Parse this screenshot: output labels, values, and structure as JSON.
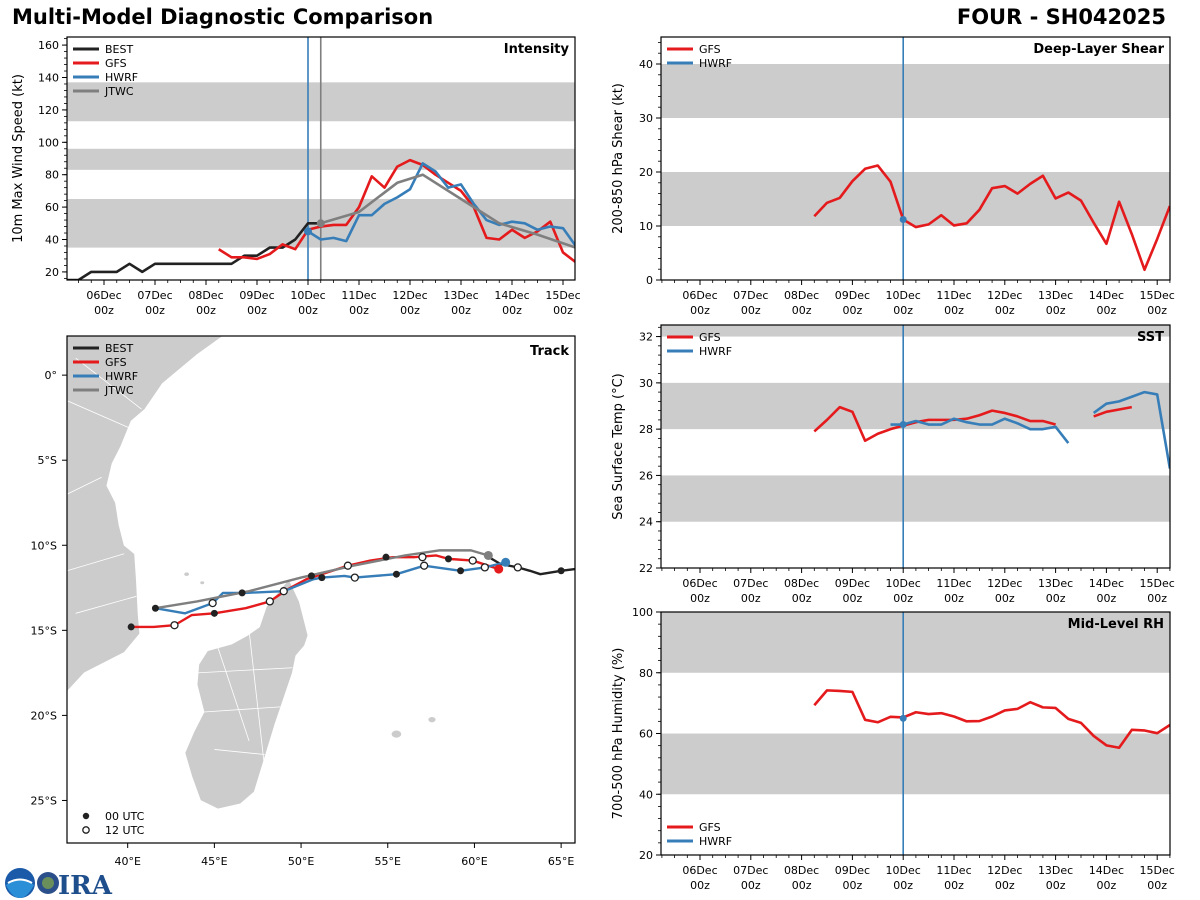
{
  "header": {
    "title": "Multi-Model Diagnostic Comparison",
    "storm": "FOUR - SH042025"
  },
  "logos": [
    "NOAA",
    "CIRA"
  ],
  "colors": {
    "BEST": "#222222",
    "GFS": "#e41a1c",
    "HWRF": "#377eb8",
    "JTWC": "#7f7f7f",
    "band": "#cccccc",
    "land": "#cccccc"
  },
  "time_ticks": [
    {
      "top": "06Dec",
      "bottom": "00z",
      "day": 0
    },
    {
      "top": "07Dec",
      "bottom": "00z",
      "day": 1
    },
    {
      "top": "08Dec",
      "bottom": "00z",
      "day": 2
    },
    {
      "top": "09Dec",
      "bottom": "00z",
      "day": 3
    },
    {
      "top": "10Dec",
      "bottom": "00z",
      "day": 4
    },
    {
      "top": "11Dec",
      "bottom": "00z",
      "day": 5
    },
    {
      "top": "12Dec",
      "bottom": "00z",
      "day": 6
    },
    {
      "top": "13Dec",
      "bottom": "00z",
      "day": 7
    },
    {
      "top": "14Dec",
      "bottom": "00z",
      "day": 8
    },
    {
      "top": "15Dec",
      "bottom": "00z",
      "day": 9
    }
  ],
  "chart_data": [
    {
      "id": "intensity",
      "type": "line",
      "title": "Intensity",
      "ylabel": "10m Max Wind Speed (kt)",
      "xlabel": "",
      "xlim_days": [
        -0.73,
        9.24
      ],
      "ylim": [
        15,
        165
      ],
      "yticks": [
        20,
        40,
        60,
        80,
        100,
        120,
        140,
        160
      ],
      "bands": [
        [
          35,
          65
        ],
        [
          83,
          96
        ],
        [
          113,
          137
        ]
      ],
      "vlines": [
        {
          "day": 4.0,
          "color": "HWRF"
        },
        {
          "day": 4.25,
          "color": "JTWC"
        }
      ],
      "legend": [
        "BEST",
        "GFS",
        "HWRF",
        "JTWC"
      ],
      "legend_position": "top-left",
      "series": [
        {
          "name": "BEST",
          "x_days": [
            -0.75,
            -0.5,
            -0.25,
            0,
            0.25,
            0.5,
            0.75,
            1,
            1.25,
            1.5,
            1.75,
            2,
            2.25,
            2.5,
            2.75,
            3,
            3.25,
            3.5,
            3.75,
            4,
            4.25
          ],
          "values": [
            15,
            15,
            20,
            20,
            20,
            25,
            20,
            25,
            25,
            25,
            25,
            25,
            25,
            25,
            30,
            30,
            35,
            35,
            40,
            50,
            50
          ]
        },
        {
          "name": "GFS",
          "x_days": [
            2.25,
            2.5,
            2.75,
            3,
            3.25,
            3.5,
            3.75,
            4,
            4.25,
            4.5,
            4.75,
            5,
            5.25,
            5.5,
            5.75,
            6,
            6.25,
            6.5,
            6.75,
            7,
            7.25,
            7.5,
            7.75,
            8,
            8.25,
            8.5,
            8.75,
            9,
            9.25
          ],
          "values": [
            34,
            29,
            29,
            28,
            31,
            37,
            34,
            46,
            48,
            49,
            49,
            60,
            79,
            72,
            85,
            89,
            86,
            80,
            75,
            70,
            60,
            41,
            40,
            46,
            41,
            45,
            51,
            32,
            26
          ]
        },
        {
          "name": "HWRF",
          "x_days": [
            4,
            4.25,
            4.5,
            4.75,
            5,
            5.25,
            5.5,
            5.75,
            6,
            6.25,
            6.5,
            6.75,
            7,
            7.25,
            7.5,
            7.75,
            8,
            8.25,
            8.5,
            8.75,
            9,
            9.25
          ],
          "values": [
            45,
            40,
            41,
            39,
            55,
            55,
            62,
            66,
            71,
            87,
            82,
            72,
            74,
            62,
            52,
            49,
            51,
            50,
            46,
            48,
            47,
            36
          ]
        },
        {
          "name": "JTWC",
          "x_days": [
            4.25,
            5,
            5.75,
            6.25,
            7,
            7.75,
            8.5,
            9.25
          ],
          "values": [
            50,
            57,
            75,
            80,
            65,
            50,
            43,
            35
          ]
        }
      ]
    },
    {
      "id": "shear",
      "type": "line",
      "title": "Deep-Layer Shear",
      "ylabel": "200-850 hPa Shear (kt)",
      "xlabel": "",
      "xlim_days": [
        -0.75,
        9.25
      ],
      "ylim": [
        0,
        45
      ],
      "yticks": [
        0,
        10,
        20,
        30,
        40
      ],
      "bands": [
        [
          10,
          20
        ],
        [
          30,
          40
        ]
      ],
      "vlines": [
        {
          "day": 4.0,
          "color": "HWRF"
        }
      ],
      "legend": [
        "GFS",
        "HWRF"
      ],
      "legend_position": "top-left",
      "series": [
        {
          "name": "GFS",
          "x_days": [
            2.25,
            2.5,
            2.75,
            3,
            3.25,
            3.5,
            3.75,
            4,
            4.25,
            4.5,
            4.75,
            5,
            5.25,
            5.5,
            5.75,
            6,
            6.25,
            6.5,
            6.75,
            7,
            7.25,
            7.5,
            7.75,
            8,
            8.25,
            8.5,
            8.75,
            9,
            9.25
          ],
          "values": [
            11.8,
            14.3,
            15.2,
            18.3,
            20.6,
            21.2,
            18.2,
            11.2,
            9.8,
            10.3,
            12,
            10.1,
            10.5,
            13,
            17,
            17.4,
            16,
            17.8,
            19.3,
            15.1,
            16.2,
            14.7,
            10.6,
            6.7,
            14.5,
            8.5,
            1.9,
            7.6,
            13.7
          ]
        },
        {
          "name": "HWRF",
          "x_days": [
            4.0
          ],
          "values": [
            11.2
          ]
        }
      ]
    },
    {
      "id": "sst",
      "type": "line",
      "title": "SST",
      "ylabel": "Sea Surface Temp (°C)",
      "xlabel": "",
      "xlim_days": [
        -0.75,
        9.25
      ],
      "ylim": [
        22,
        32.5
      ],
      "yticks": [
        22,
        24,
        26,
        28,
        30,
        32
      ],
      "bands": [
        [
          24,
          26
        ],
        [
          28,
          30
        ],
        [
          32,
          32.5
        ]
      ],
      "vlines": [
        {
          "day": 4.0,
          "color": "HWRF"
        }
      ],
      "legend": [
        "GFS",
        "HWRF"
      ],
      "legend_position": "top-left",
      "series": [
        {
          "name": "GFS",
          "x_days": [
            2.25,
            2.5,
            2.75,
            3,
            3.25,
            3.5,
            3.75,
            4,
            4.25,
            4.5,
            4.75,
            5,
            5.25,
            5.5,
            5.75,
            6,
            6.25,
            6.5,
            6.75,
            7
          ],
          "values": [
            27.9,
            28.4,
            28.95,
            28.75,
            27.5,
            27.8,
            28.0,
            28.15,
            28.3,
            28.4,
            28.4,
            28.4,
            28.45,
            28.6,
            28.8,
            28.7,
            28.55,
            28.35,
            28.35,
            28.2
          ]
        },
        {
          "name": "GFS-late",
          "x_days": [
            7.75,
            8,
            8.25,
            8.5
          ],
          "values": [
            28.55,
            28.75,
            28.85,
            28.95
          ]
        },
        {
          "name": "HWRF",
          "x_days": [
            3.75,
            4,
            4.25,
            4.5,
            4.75,
            5,
            5.25,
            5.5,
            5.75,
            6,
            6.25,
            6.5,
            6.75,
            7,
            7.25
          ],
          "values": [
            28.2,
            28.2,
            28.35,
            28.2,
            28.2,
            28.45,
            28.3,
            28.2,
            28.2,
            28.45,
            28.25,
            28.0,
            28.0,
            28.1,
            27.4
          ]
        },
        {
          "name": "HWRF-late",
          "x_days": [
            7.75,
            8,
            8.25,
            8.5,
            8.75,
            9,
            9.25
          ],
          "values": [
            28.7,
            29.1,
            29.2,
            29.4,
            29.6,
            29.5,
            26.3
          ]
        }
      ]
    },
    {
      "id": "rh",
      "type": "line",
      "title": "Mid-Level RH",
      "ylabel": "700-500 hPa Humidity (%)",
      "xlabel": "",
      "xlim_days": [
        -0.75,
        9.25
      ],
      "ylim": [
        20,
        100
      ],
      "yticks": [
        20,
        40,
        60,
        80,
        100
      ],
      "bands": [
        [
          40,
          60
        ],
        [
          80,
          100
        ]
      ],
      "vlines": [
        {
          "day": 4.0,
          "color": "HWRF"
        }
      ],
      "legend": [
        "GFS",
        "HWRF"
      ],
      "legend_position": "bottom-left",
      "series": [
        {
          "name": "GFS",
          "x_days": [
            2.25,
            2.5,
            2.75,
            3,
            3.25,
            3.5,
            3.75,
            4,
            4.25,
            4.5,
            4.75,
            5,
            5.25,
            5.5,
            5.75,
            6,
            6.25,
            6.5,
            6.75,
            7,
            7.25,
            7.5,
            7.75,
            8,
            8.25,
            8.5,
            8.75,
            9,
            9.25
          ],
          "values": [
            69.3,
            74.2,
            74,
            73.7,
            64.5,
            63.7,
            65.5,
            65.3,
            67,
            66.4,
            66.7,
            65.6,
            64,
            64.1,
            65.6,
            67.6,
            68.1,
            70.3,
            68.6,
            68.4,
            64.8,
            63.5,
            59.2,
            56.1,
            55.3,
            61.2,
            61,
            60.1,
            62.8
          ]
        },
        {
          "name": "HWRF",
          "x_days": [
            4.0
          ],
          "values": [
            65
          ]
        }
      ]
    },
    {
      "id": "track",
      "type": "scatter",
      "title": "Track",
      "xlim": [
        36.5,
        65.8
      ],
      "ylim": [
        -27.5,
        2.3
      ],
      "xticks": [
        {
          "v": 40,
          "label": "40°E"
        },
        {
          "v": 45,
          "label": "45°E"
        },
        {
          "v": 50,
          "label": "50°E"
        },
        {
          "v": 55,
          "label": "55°E"
        },
        {
          "v": 60,
          "label": "60°E"
        },
        {
          "v": 65,
          "label": "65°E"
        }
      ],
      "yticks": [
        {
          "v": 0,
          "label": "0°"
        },
        {
          "v": -5,
          "label": "5°S"
        },
        {
          "v": -10,
          "label": "10°S"
        },
        {
          "v": -15,
          "label": "15°S"
        },
        {
          "v": -20,
          "label": "20°S"
        },
        {
          "v": -25,
          "label": "25°S"
        }
      ],
      "legend": [
        "BEST",
        "GFS",
        "HWRF",
        "JTWC"
      ],
      "marker_legend": [
        "00 UTC",
        "12 UTC"
      ],
      "series": [
        {
          "name": "BEST",
          "points": [
            [
              65.8,
              -11.4
            ],
            [
              65.0,
              -11.5
            ],
            [
              63.8,
              -11.7
            ],
            [
              63.2,
              -11.5
            ],
            [
              62.5,
              -11.3
            ],
            [
              61.5,
              -11.1
            ],
            [
              61.0,
              -10.8
            ],
            [
              60.8,
              -10.6
            ]
          ],
          "markers": [
            [
              65.0,
              -11.5,
              "00"
            ],
            [
              62.5,
              -11.3,
              "12"
            ]
          ]
        },
        {
          "name": "GFS",
          "points": [
            [
              40.2,
              -14.8
            ],
            [
              41.5,
              -14.8
            ],
            [
              42.7,
              -14.7
            ],
            [
              43.7,
              -14.1
            ],
            [
              45.0,
              -14.0
            ],
            [
              46.8,
              -13.7
            ],
            [
              48.2,
              -13.3
            ],
            [
              49.2,
              -12.6
            ],
            [
              50.3,
              -12.0
            ],
            [
              51.5,
              -11.6
            ],
            [
              52.7,
              -11.2
            ],
            [
              54.0,
              -10.9
            ],
            [
              55.3,
              -10.7
            ],
            [
              56.5,
              -10.7
            ],
            [
              57.8,
              -10.6
            ],
            [
              58.5,
              -10.8
            ],
            [
              59.9,
              -10.9
            ],
            [
              61.4,
              -11.4
            ]
          ],
          "markers": [
            [
              40.2,
              -14.8,
              "00"
            ],
            [
              42.7,
              -14.7,
              "12"
            ],
            [
              45.0,
              -14.0,
              "00"
            ],
            [
              48.2,
              -13.3,
              "12"
            ],
            [
              52.7,
              -11.2,
              "12"
            ],
            [
              58.5,
              -10.8,
              "00"
            ],
            [
              59.9,
              -10.9,
              "12"
            ],
            [
              61.4,
              -11.4,
              "now"
            ]
          ]
        },
        {
          "name": "HWRF",
          "points": [
            [
              41.6,
              -13.7
            ],
            [
              43.3,
              -14.0
            ],
            [
              44.9,
              -13.4
            ],
            [
              45.5,
              -12.8
            ],
            [
              46.8,
              -12.8
            ],
            [
              49.0,
              -12.7
            ],
            [
              50.7,
              -12.0
            ],
            [
              51.2,
              -11.9
            ],
            [
              52.5,
              -11.8
            ],
            [
              53.1,
              -11.9
            ],
            [
              55.5,
              -11.7
            ],
            [
              57.1,
              -11.2
            ],
            [
              59.2,
              -11.5
            ],
            [
              60.6,
              -11.3
            ],
            [
              61.8,
              -11.0
            ]
          ],
          "markers": [
            [
              44.9,
              -13.4,
              "12"
            ],
            [
              49.0,
              -12.7,
              "12"
            ],
            [
              51.2,
              -11.9,
              "00"
            ],
            [
              53.1,
              -11.9,
              "12"
            ],
            [
              55.5,
              -11.7,
              "00"
            ],
            [
              57.1,
              -11.2,
              "12"
            ],
            [
              59.2,
              -11.5,
              "00"
            ],
            [
              60.6,
              -11.3,
              "12"
            ],
            [
              61.8,
              -11.0,
              "now"
            ]
          ]
        },
        {
          "name": "JTWC",
          "points": [
            [
              41.6,
              -13.7
            ],
            [
              44.0,
              -13.3
            ],
            [
              47.0,
              -12.7
            ],
            [
              50.0,
              -11.9
            ],
            [
              53.0,
              -11.2
            ],
            [
              56.0,
              -10.6
            ],
            [
              58.0,
              -10.3
            ],
            [
              59.8,
              -10.3
            ],
            [
              60.8,
              -10.6
            ]
          ],
          "markers": [
            [
              41.6,
              -13.7,
              "00"
            ],
            [
              46.6,
              -12.8,
              "00"
            ],
            [
              50.6,
              -11.8,
              "00"
            ],
            [
              54.9,
              -10.7,
              "00"
            ],
            [
              57.0,
              -10.7,
              "12"
            ],
            [
              60.8,
              -10.6,
              "now"
            ]
          ]
        }
      ]
    }
  ]
}
